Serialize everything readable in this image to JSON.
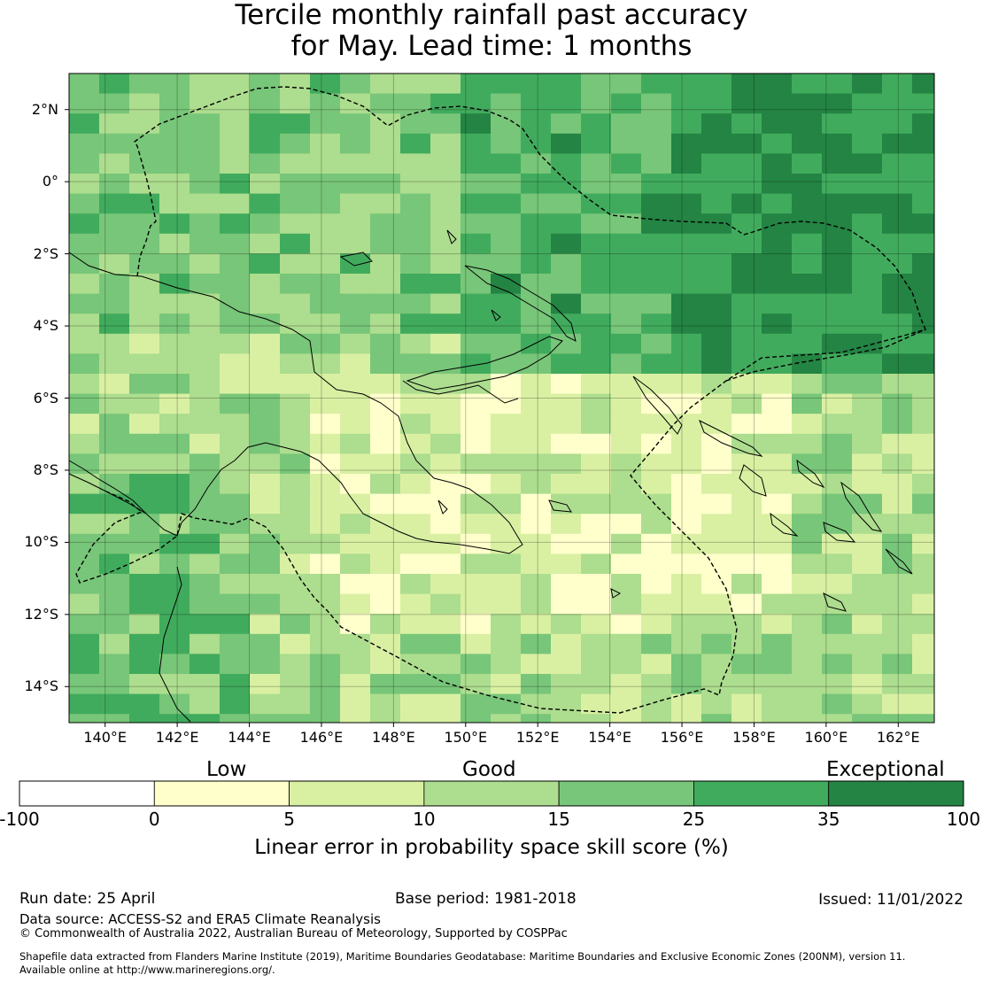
{
  "title": {
    "line1": "Tercile monthly rainfall past accuracy",
    "line2": "for May. Lead time: 1 months"
  },
  "map": {
    "lat_labels": [
      "2°N",
      "0°",
      "2°S",
      "4°S",
      "6°S",
      "8°S",
      "10°S",
      "12°S",
      "14°S"
    ],
    "lon_labels": [
      "140°E",
      "142°E",
      "144°E",
      "146°E",
      "148°E",
      "150°E",
      "152°E",
      "154°E",
      "156°E",
      "158°E",
      "160°E",
      "162°E"
    ],
    "lat_range": [
      -15,
      3
    ],
    "lon_range": [
      139,
      163
    ]
  },
  "colorbar": {
    "categories": [
      "Low",
      "Good",
      "Exceptional"
    ],
    "ticks": [
      "-100",
      "0",
      "5",
      "10",
      "15",
      "25",
      "35",
      "100"
    ],
    "colors": [
      "#ffffff",
      "#ffffcc",
      "#d9f0a3",
      "#addd8e",
      "#78c679",
      "#41ab5d",
      "#238443"
    ],
    "title": "Linear error in probability space skill score (%)"
  },
  "footer": {
    "run_date": "Run date: 25 April",
    "base_period": "Base period: 1981-2018",
    "issued": "Issued: 11/01/2022",
    "data_source": "Data source: ACCESS-S2 and ERA5 Climate Reanalysis",
    "copyright": "© Commonwealth of Australia 2022, Australian Bureau of Meteorology, Supported by COSPPac",
    "shapefile_line1": "Shapefile data extracted from Flanders Marine Institute (2019), Maritime Boundaries Geodatabase: Maritime Boundaries and Exclusive Economic Zones (200NM), version 11.",
    "shapefile_line2": "Available online at http://www.marineregions.org/."
  }
}
